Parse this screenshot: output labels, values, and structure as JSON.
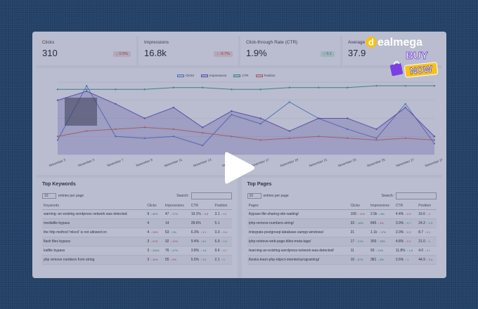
{
  "kpis": [
    {
      "label": "Clicks",
      "value": "310",
      "badge": "↓ 0.0%",
      "trend": "down"
    },
    {
      "label": "Impressions",
      "value": "16.8k",
      "badge": "↓ -0.7%",
      "trend": "down"
    },
    {
      "label": "Click-through Rate (CTR)",
      "value": "1.9%",
      "badge": "↑ 0.1",
      "trend": "up"
    },
    {
      "label": "Average P",
      "value": "37.9",
      "badge": "",
      "trend": ""
    }
  ],
  "chart_data": {
    "type": "line",
    "x": [
      "November 3",
      "November 5",
      "November 7",
      "November 9",
      "November 11",
      "November 13",
      "November 15",
      "November 17",
      "November 19",
      "November 21",
      "November 23",
      "November 25",
      "November 27",
      "November 29"
    ],
    "series": [
      {
        "name": "Clicks",
        "color": "#5b8bd9",
        "values": [
          8,
          38,
          10,
          9,
          10,
          5,
          22,
          17,
          29,
          20,
          14,
          9,
          28,
          6
        ]
      },
      {
        "name": "Impressions",
        "color": "#6b4fbb",
        "values": [
          30,
          35,
          28,
          20,
          26,
          15,
          24,
          20,
          13,
          20,
          20,
          14,
          26,
          10
        ]
      },
      {
        "name": "CTR",
        "color": "#3a9d8c",
        "values": [
          36,
          36,
          36,
          36,
          37,
          37,
          36,
          36,
          37,
          37,
          37,
          38,
          38,
          38
        ]
      },
      {
        "name": "Position",
        "color": "#d56a5c",
        "values": [
          10,
          13,
          14,
          15,
          14,
          12,
          10,
          8,
          9,
          10,
          9,
          8,
          9,
          8
        ]
      }
    ]
  },
  "keywords": {
    "title": "Top Keywords",
    "entries_select": "10",
    "entries_label": "entries per page",
    "search_label": "Search:",
    "headers": [
      "Keywords",
      "Clicks",
      "Impressions",
      "CTR",
      "Position"
    ],
    "rows": [
      {
        "kw": "warning: an existing wordpress network was detected.",
        "clicks": "9",
        "cd": "↑ 80%",
        "cdir": "up",
        "imp": "47",
        "id": "↑ 27%",
        "idir": "up",
        "ctr": "19.1%",
        "td": "↓ 5.8",
        "tdir": "down",
        "pos": "3.1",
        "pd": "↓ 0.1",
        "pdir": "down"
      },
      {
        "kw": "mediafile bypass",
        "clicks": "4",
        "cd": "",
        "cdir": "",
        "imp": "14",
        "id": "",
        "idir": "",
        "ctr": "28.6%",
        "td": "",
        "tdir": "",
        "pos": "5.1",
        "pd": "",
        "pdir": ""
      },
      {
        "kw": "the http method 'mkcol' is not allowed on",
        "clicks": "4",
        "cd": "↓ 20%",
        "cdir": "down",
        "imp": "63",
        "id": "↑ 9%",
        "idir": "up",
        "ctr": "6.3%",
        "td": "↓ 3.1",
        "tdir": "down",
        "pos": "3.3",
        "pd": "↓ 0.9",
        "pdir": "down"
      },
      {
        "kw": "flash files bypass",
        "clicks": "3",
        "cd": "↓ 67%",
        "cdir": "down",
        "imp": "32",
        "id": "↓ 42%",
        "idir": "down",
        "ctr": "9.4%",
        "td": "↑ 8.2",
        "tdir": "up",
        "pos": "6.9",
        "pd": "↑ 0.3",
        "pdir": "up"
      },
      {
        "kw": "katfile bypass",
        "clicks": "3",
        "cd": "↑ 200%",
        "cdir": "up",
        "imp": "76",
        "id": "↑ 47%",
        "idir": "up",
        "ctr": "3.8%",
        "td": "↑ 1.8",
        "tdir": "up",
        "pos": "9.6",
        "pd": "↓ 0.7",
        "pdir": "down"
      },
      {
        "kw": "php remove numbers from string",
        "clicks": "3",
        "cd": "↓ 40%",
        "cdir": "down",
        "imp": "55",
        "id": "↓ 6%",
        "idir": "down",
        "ctr": "5.5%",
        "td": "↑ 2.6",
        "tdir": "up",
        "pos": "2.1",
        "pd": "↑ 0",
        "pdir": "up"
      }
    ]
  },
  "pages": {
    "title": "Top Pages",
    "entries_select": "10",
    "entries_label": "entries per page",
    "search_label": "Search:",
    "headers": [
      "Pages",
      "Clicks",
      "Impressions",
      "CTR",
      "Position"
    ],
    "rows": [
      {
        "page": "/bypass-file-sharing-site-waiting/",
        "clicks": "109",
        "cd": "↓ 11%",
        "cdir": "down",
        "imp": "2.5k",
        "id": "↑ 8%",
        "idir": "up",
        "ctr": "4.4%",
        "td": "↓ 0.9",
        "tdir": "down",
        "pos": "16.6",
        "pd": "↓ 2",
        "pdir": "down"
      },
      {
        "page": "/php-remove-numbers-string/",
        "clicks": "33",
        "cd": "↑ 18%",
        "cdir": "up",
        "imp": "845",
        "id": "↓ 4%",
        "idir": "down",
        "ctr": "3.9%",
        "td": "↑ 0.7",
        "tdir": "up",
        "pos": "24.2",
        "pd": "↑ 2.3",
        "pdir": "up"
      },
      {
        "page": "/integrate-postgresql-database-xampp-windows/",
        "clicks": "21",
        "cd": "",
        "cdir": "",
        "imp": "1.1k",
        "id": "↑ 17%",
        "idir": "up",
        "ctr": "2.0%",
        "td": "↓ 0.3",
        "tdir": "down",
        "pos": "8.7",
        "pd": "↓ 0.1",
        "pdir": "down"
      },
      {
        "page": "/php-retrieve-web-page-titles-meta-tags/",
        "clicks": "17",
        "cd": "↑ 21%",
        "cdir": "up",
        "imp": "359",
        "id": "↑ 25%",
        "idir": "up",
        "ctr": "4.8%",
        "td": "↓ 0.2",
        "tdir": "down",
        "pos": "21.0",
        "pd": "↑ 1",
        "pdir": "up"
      },
      {
        "page": "/warning-an-existing-wordpress-network-was-detected/",
        "clicks": "11",
        "cd": "",
        "cdir": "",
        "imp": "93",
        "id": "↑ 10%",
        "idir": "up",
        "ctr": "11.8%",
        "td": "↑ 1.8",
        "tdir": "up",
        "pos": "4.0",
        "pd": "↓ 0.7",
        "pdir": "down"
      },
      {
        "page": "/books-learn-php-object-oriented-programing/",
        "clicks": "10",
        "cd": "↑ 67%",
        "cdir": "up",
        "imp": "381",
        "id": "↑ 8%",
        "idir": "up",
        "ctr": "2.6%",
        "td": "↑ 1",
        "tdir": "up",
        "pos": "44.9",
        "pd": "↓ 3.4",
        "pdir": "down"
      }
    ]
  },
  "logo": {
    "brand_d": "d",
    "brand_rest": "ealmega",
    "buy": "BUY",
    "now": "NOW"
  },
  "colors": {
    "overlay": "#46528099",
    "background": "#234066"
  },
  "icons": {
    "play": "play-icon",
    "cart": "shopping-cart-icon"
  }
}
